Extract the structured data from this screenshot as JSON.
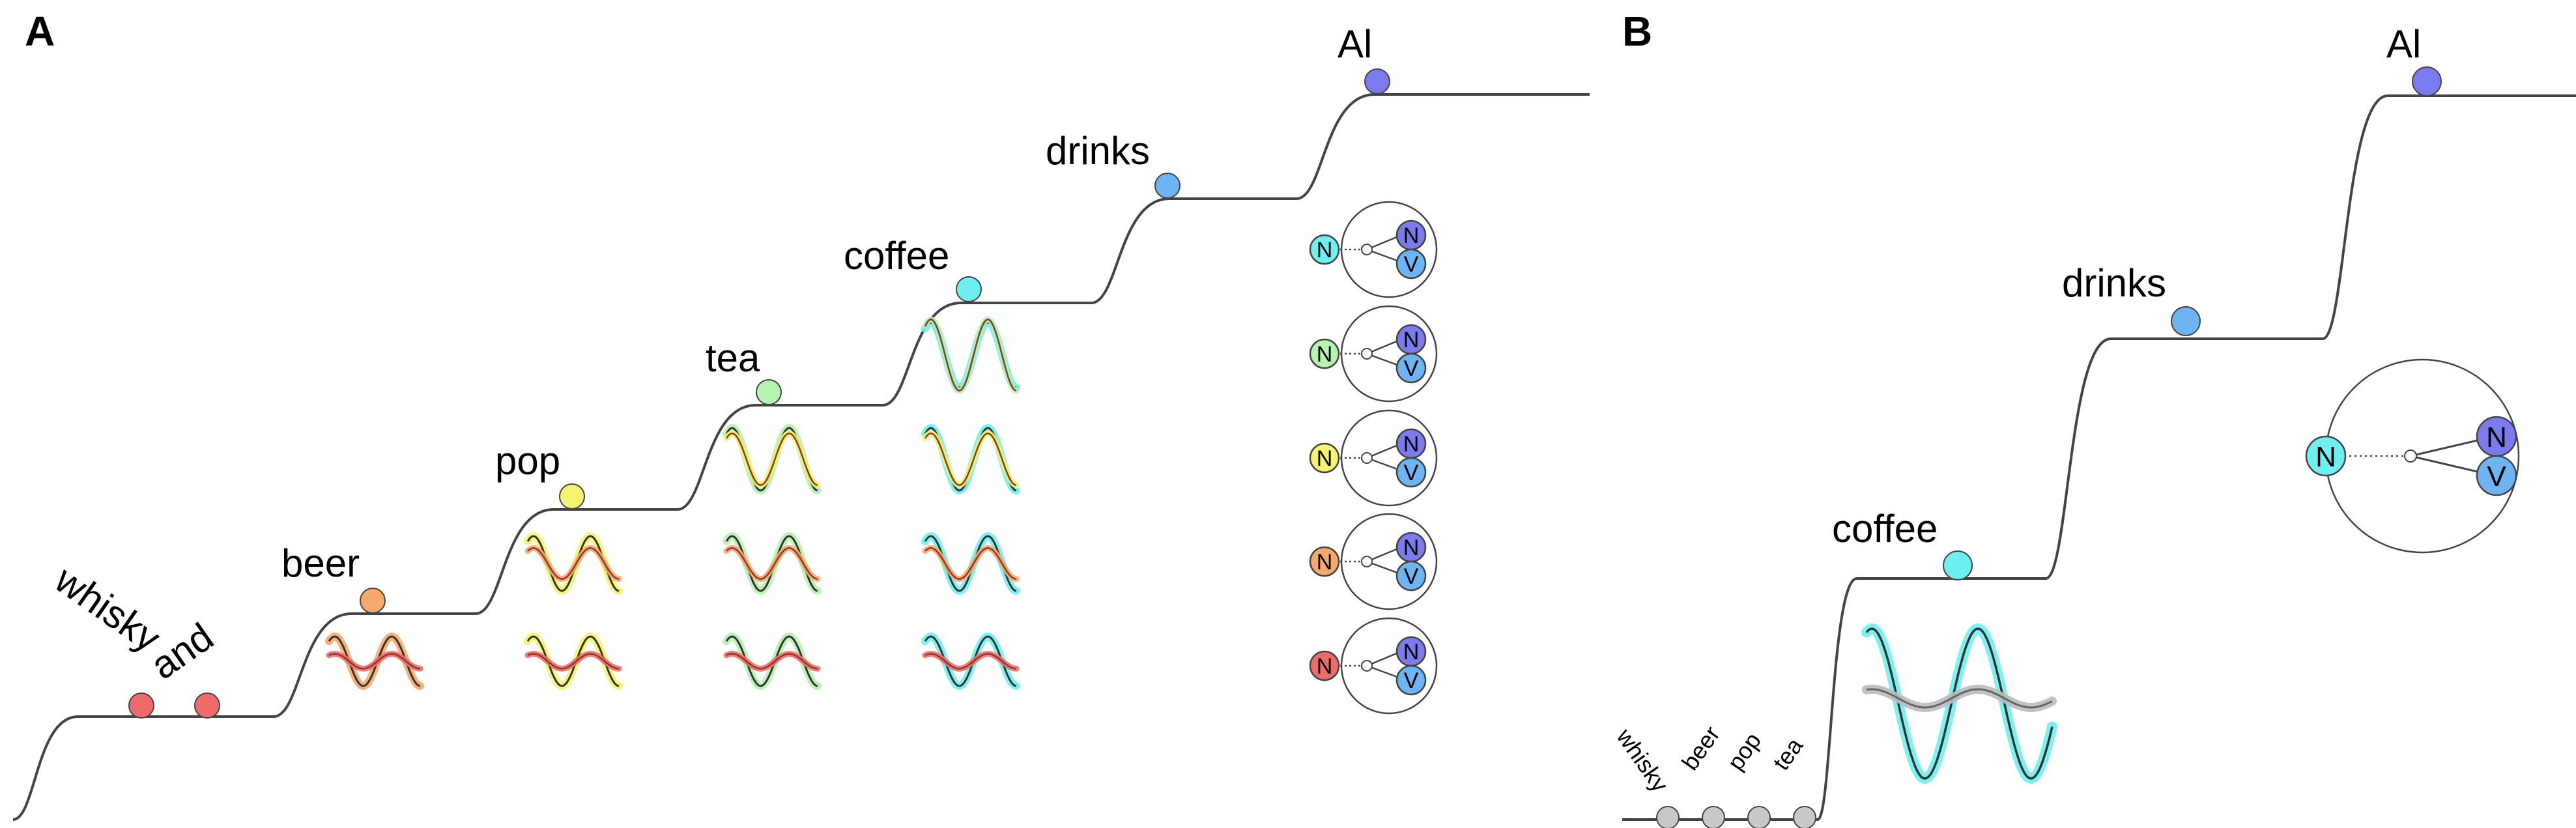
{
  "panels": {
    "a": {
      "label": "A",
      "words": [
        {
          "text": "whisky",
          "color": "#ef6b6b"
        },
        {
          "text": "and",
          "color": "#ef6b6b"
        },
        {
          "text": "beer",
          "color": "#f7a96b"
        },
        {
          "text": "pop",
          "color": "#f4f46e"
        },
        {
          "text": "tea",
          "color": "#b6f2b0"
        },
        {
          "text": "coffee",
          "color": "#6ff0f0"
        },
        {
          "text": "drinks",
          "color": "#6fb4f2"
        },
        {
          "text": "Al",
          "color": "#7b7bef"
        }
      ],
      "wave_colors": [
        "#f7a96b",
        "#f4f46e",
        "#b6f2b0",
        "#6ff0f0"
      ],
      "inner_wave_colors": [
        "#f4f46e",
        "#f7a96b",
        "#ef6b6b"
      ],
      "node_rows": [
        {
          "label": "N",
          "color": "#6ff0f0"
        },
        {
          "label": "N",
          "color": "#b6f2b0"
        },
        {
          "label": "N",
          "color": "#f4f46e"
        },
        {
          "label": "N",
          "color": "#f7a96b"
        },
        {
          "label": "N",
          "color": "#ef6b6b"
        }
      ],
      "node_n_label": "N",
      "node_v_label": "V"
    },
    "b": {
      "label": "B",
      "small_words": [
        "whisky",
        "beer",
        "pop",
        "tea"
      ],
      "words": [
        {
          "text": "coffee",
          "color": "#6ff0f0"
        },
        {
          "text": "drinks",
          "color": "#6fb4f2"
        },
        {
          "text": "Al",
          "color": "#7b7bef"
        }
      ],
      "small_dot_color": "#c8c8c8",
      "node": {
        "left_label": "N",
        "left_color": "#6ff0f0",
        "n_label": "N",
        "v_label": "V"
      }
    }
  },
  "colors": {
    "line": "#444444",
    "node_n": "#7b7bef",
    "node_v": "#6fb4f2",
    "gray_wave": "#999999"
  }
}
